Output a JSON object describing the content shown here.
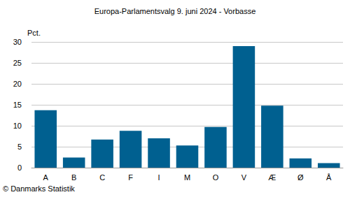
{
  "chart_data": {
    "type": "bar",
    "title": "Europa-Parlamentsvalg 9. juni 2024 - Vorbasse",
    "y_label": "Pct.",
    "annotation": "© Danmarks Statistik",
    "categories": [
      "A",
      "B",
      "C",
      "F",
      "I",
      "M",
      "O",
      "V",
      "Æ",
      "Ø",
      "Å"
    ],
    "values": [
      13.7,
      2.4,
      6.7,
      8.8,
      7.0,
      5.3,
      9.7,
      29.0,
      14.8,
      2.2,
      1.1
    ],
    "color": "#006090",
    "ylim": [
      0,
      30
    ],
    "yticks": [
      0,
      5,
      10,
      15,
      20,
      25,
      30
    ],
    "grid": true
  }
}
